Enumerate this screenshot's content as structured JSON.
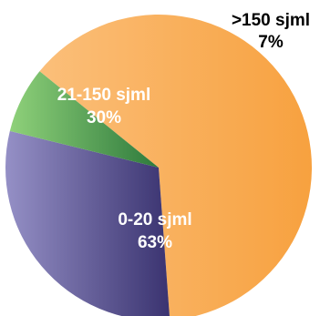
{
  "chart_data": {
    "type": "pie",
    "title": "",
    "slices": [
      {
        "label": "0-20 sjml",
        "value": 63,
        "value_label": "63%",
        "color": "#f7a13f",
        "color_light": "#fbbf7a"
      },
      {
        "label": "21-150 sjml",
        "value": 30,
        "value_label": "30%",
        "color": "#3a3370",
        "color_light": "#9590c6"
      },
      {
        "label": ">150 sjml",
        "value": 7,
        "value_label": "7%",
        "color": "#2e7a3c",
        "color_light": "#8fd17a"
      }
    ],
    "labels_inside": [
      true,
      true,
      false
    ],
    "label_text_color_inside": "#ffffff",
    "label_text_color_outside": "#000000"
  }
}
